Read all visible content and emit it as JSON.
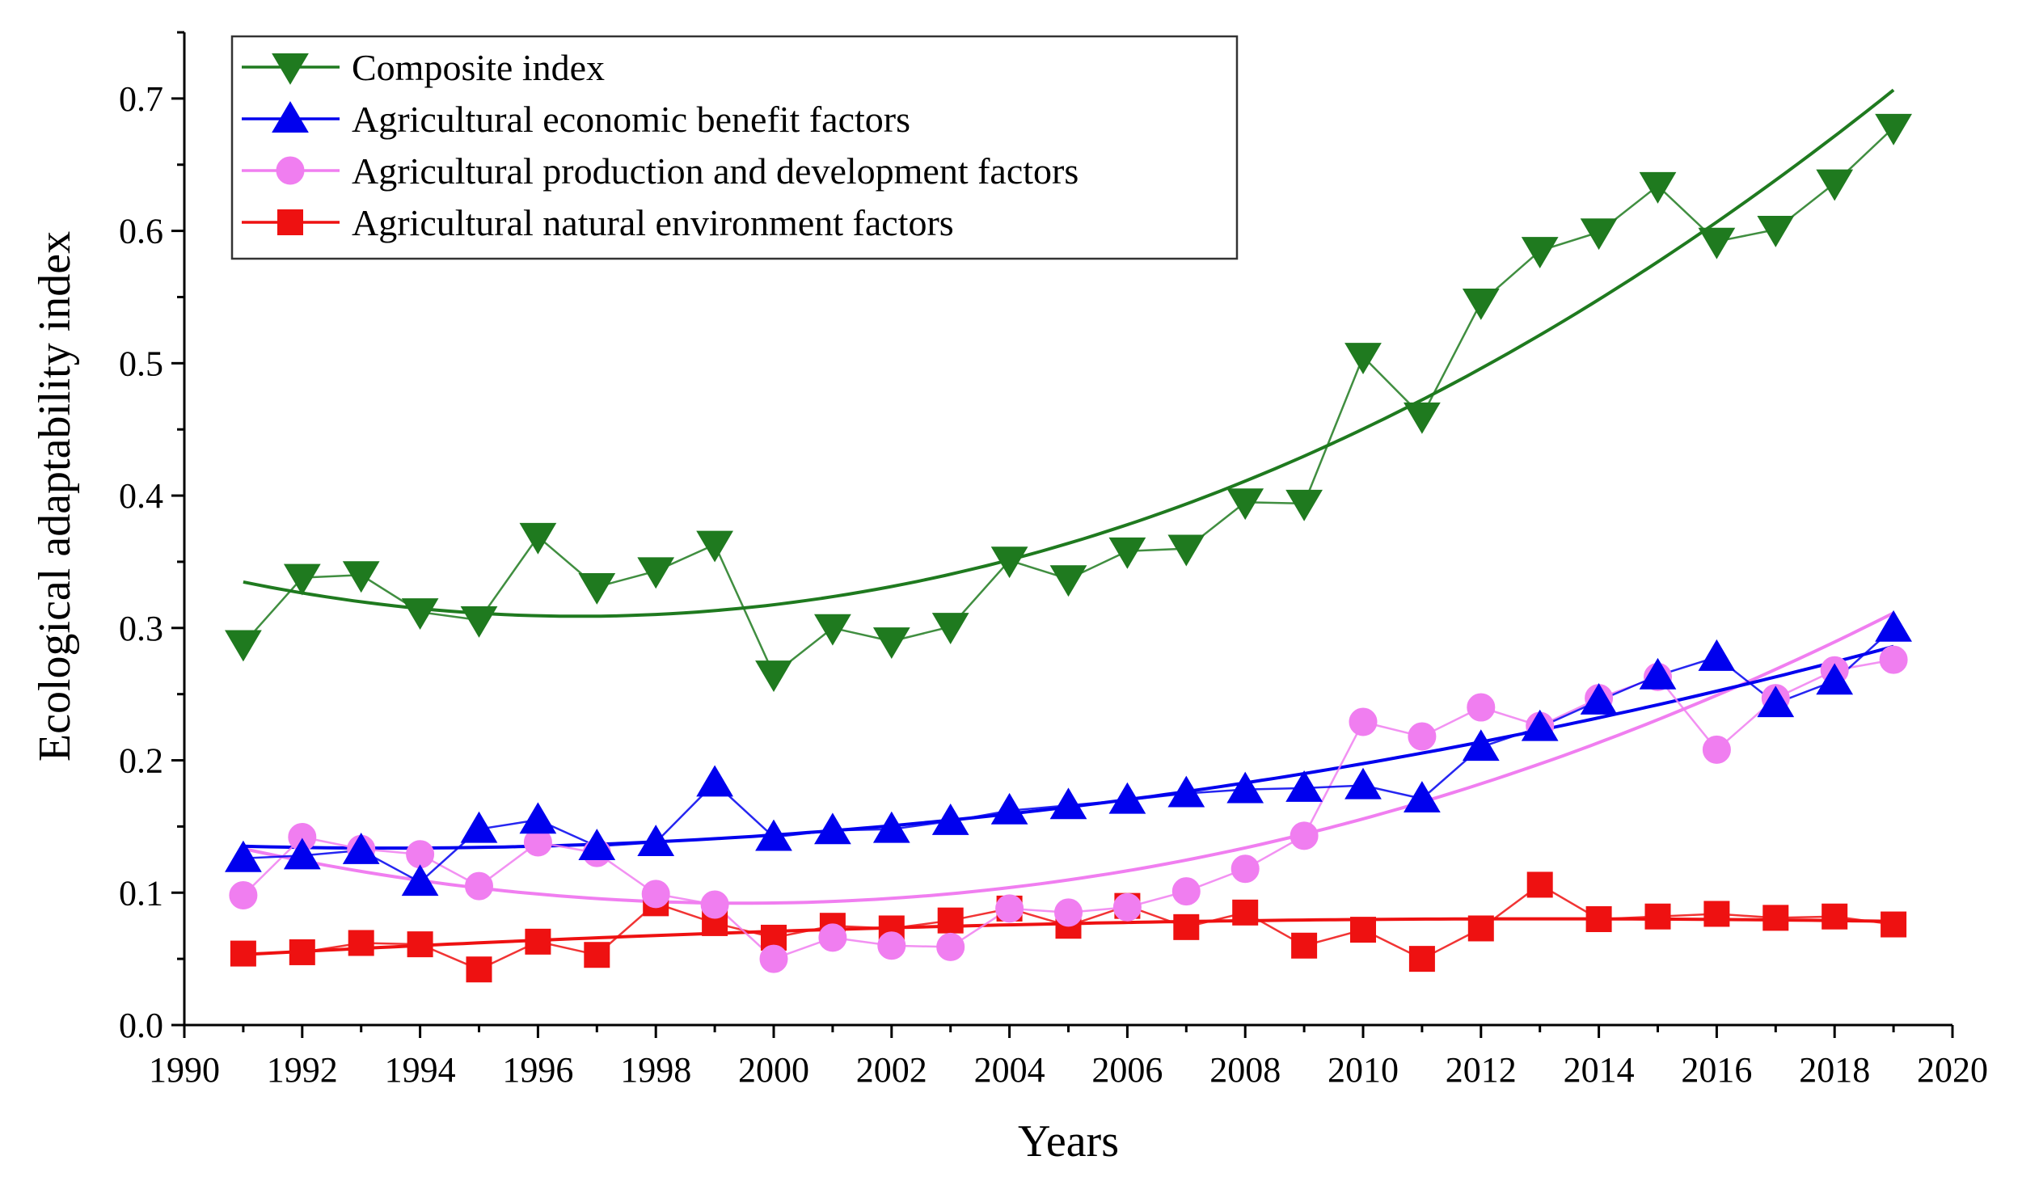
{
  "chart_data": {
    "type": "line",
    "xlabel": "Years",
    "ylabel": "Ecological adaptability index",
    "xlim": [
      1990,
      2020
    ],
    "ylim": [
      0.0,
      0.75
    ],
    "xticks": [
      1990,
      1992,
      1994,
      1996,
      1998,
      2000,
      2002,
      2004,
      2006,
      2008,
      2010,
      2012,
      2014,
      2016,
      2018,
      2020
    ],
    "yticks": [
      "0.0",
      "0.1",
      "0.2",
      "0.3",
      "0.4",
      "0.5",
      "0.6",
      "0.7"
    ],
    "grid": false,
    "legend_position": "top-left",
    "x": [
      1991,
      1992,
      1993,
      1994,
      1995,
      1996,
      1997,
      1998,
      1999,
      2000,
      2001,
      2002,
      2003,
      2004,
      2005,
      2006,
      2007,
      2008,
      2009,
      2010,
      2011,
      2012,
      2013,
      2014,
      2015,
      2016,
      2017,
      2018,
      2019
    ],
    "series": [
      {
        "name": "Composite index",
        "color": "#1f7a1f",
        "marker": "triangle-down",
        "trend": "quadratic",
        "values": [
          0.288,
          0.338,
          0.34,
          0.312,
          0.306,
          0.369,
          0.331,
          0.343,
          0.363,
          0.265,
          0.3,
          0.29,
          0.301,
          0.351,
          0.337,
          0.358,
          0.36,
          0.395,
          0.394,
          0.505,
          0.46,
          0.546,
          0.585,
          0.599,
          0.634,
          0.592,
          0.601,
          0.636,
          0.678
        ]
      },
      {
        "name": "Agricultural economic benefit factors",
        "color": "#0000ee",
        "marker": "triangle-up",
        "trend": "quadratic",
        "values": [
          0.126,
          0.128,
          0.132,
          0.108,
          0.148,
          0.155,
          0.135,
          0.138,
          0.183,
          0.142,
          0.147,
          0.148,
          0.154,
          0.162,
          0.166,
          0.17,
          0.175,
          0.178,
          0.179,
          0.181,
          0.171,
          0.21,
          0.225,
          0.245,
          0.264,
          0.278,
          0.243,
          0.26,
          0.3
        ]
      },
      {
        "name": "Agricultural production and development factors",
        "color": "#f07ef0",
        "marker": "circle",
        "trend": "quadratic",
        "values": [
          0.098,
          0.142,
          0.133,
          0.129,
          0.105,
          0.138,
          0.13,
          0.099,
          0.091,
          0.05,
          0.066,
          0.06,
          0.059,
          0.088,
          0.085,
          0.089,
          0.101,
          0.118,
          0.143,
          0.229,
          0.218,
          0.24,
          0.226,
          0.247,
          0.263,
          0.208,
          0.247,
          0.268,
          0.276
        ]
      },
      {
        "name": "Agricultural natural environment factors",
        "color": "#ee1111",
        "marker": "square",
        "trend": "quadratic",
        "values": [
          0.054,
          0.055,
          0.062,
          0.061,
          0.042,
          0.063,
          0.053,
          0.092,
          0.077,
          0.066,
          0.075,
          0.073,
          0.079,
          0.088,
          0.075,
          0.09,
          0.074,
          0.085,
          0.06,
          0.072,
          0.05,
          0.073,
          0.106,
          0.08,
          0.082,
          0.084,
          0.081,
          0.082,
          0.076
        ]
      }
    ]
  }
}
